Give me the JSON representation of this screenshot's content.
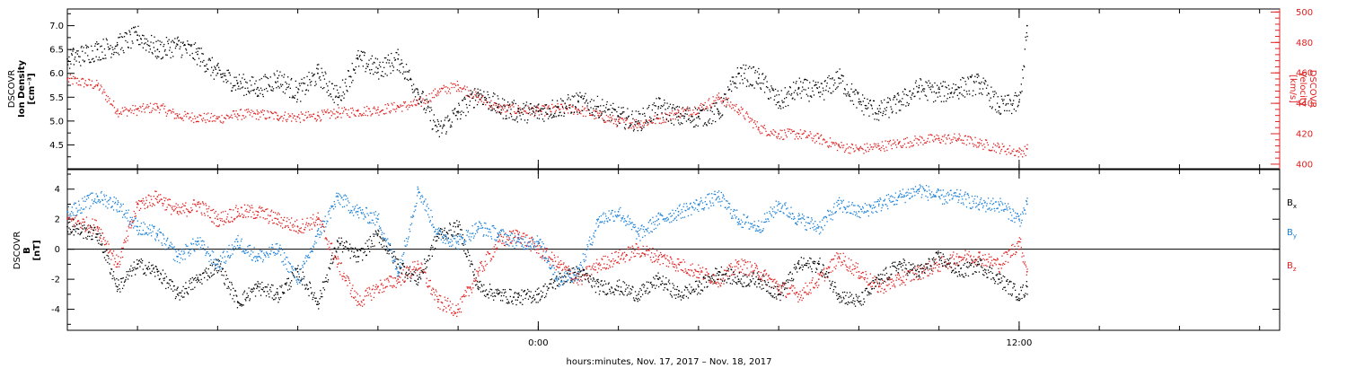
{
  "figure": {
    "xlabel": "hours:minutes, Nov. 17, 2017 – Nov. 18, 2017"
  },
  "colors": {
    "density": "#000000",
    "velocity": "#e02020",
    "bx": "#000000",
    "by": "#1a80d8",
    "bz": "#e02020",
    "frame": "#000000"
  },
  "chart_data": [
    {
      "type": "scatter",
      "panel": "plasma",
      "x_unit": "hours relative to 00:00 Nov. 18, 2017",
      "xlim": [
        -11.75,
        18.5
      ],
      "xticks": [
        {
          "value": 0,
          "label": "0:00"
        },
        {
          "value": 12,
          "label": "12:00"
        }
      ],
      "ylabel_left": [
        "DSCOVR",
        "Ion Density",
        "[cm⁻³]"
      ],
      "ylim_left": [
        4.0,
        7.35
      ],
      "yticks_left": [
        4.5,
        5.0,
        5.5,
        6.0,
        6.5,
        7.0
      ],
      "ylabel_right": [
        "DSCOVR",
        "Velocity",
        "[km/s]"
      ],
      "ylim_right": [
        397,
        502
      ],
      "yticks_right": [
        400,
        420,
        440,
        460,
        480,
        500
      ],
      "series": [
        {
          "name": "Ion Density",
          "axis": "left",
          "color": "#000000",
          "x": [
            -11.75,
            -11.0,
            -10.5,
            -10.0,
            -9.5,
            -9.0,
            -8.5,
            -8.0,
            -7.5,
            -7.0,
            -6.5,
            -6.0,
            -5.5,
            -5.0,
            -4.5,
            -4.0,
            -3.5,
            -3.0,
            -2.5,
            -2.0,
            -1.5,
            -1.0,
            -0.5,
            0.0,
            0.5,
            1.0,
            1.5,
            2.0,
            2.5,
            3.0,
            3.5,
            4.0,
            4.5,
            5.0,
            5.5,
            6.0,
            6.5,
            7.0,
            7.5,
            8.0,
            8.5,
            9.0,
            9.5,
            10.0,
            10.5,
            11.0,
            11.5,
            12.0,
            12.2
          ],
          "y": [
            6.3,
            6.5,
            6.6,
            6.8,
            6.5,
            6.6,
            6.4,
            6.0,
            5.8,
            5.7,
            5.9,
            5.6,
            6.0,
            5.5,
            6.3,
            6.1,
            6.3,
            5.6,
            4.8,
            5.2,
            5.6,
            5.3,
            5.2,
            5.2,
            5.3,
            5.4,
            5.3,
            5.1,
            5.0,
            5.3,
            5.1,
            5.1,
            5.2,
            6.0,
            5.9,
            5.4,
            5.7,
            5.6,
            5.9,
            5.4,
            5.2,
            5.4,
            5.7,
            5.6,
            5.7,
            5.8,
            5.3,
            5.4,
            7.0
          ]
        },
        {
          "name": "Velocity",
          "axis": "right",
          "color": "#e02020",
          "x": [
            -11.75,
            -11.0,
            -10.5,
            -10.0,
            -9.5,
            -9.0,
            -8.5,
            -8.0,
            -7.5,
            -7.0,
            -6.5,
            -6.0,
            -5.5,
            -5.0,
            -4.5,
            -4.0,
            -3.5,
            -3.0,
            -2.5,
            -2.0,
            -1.5,
            -1.0,
            -0.5,
            0.0,
            0.5,
            1.0,
            1.5,
            2.0,
            2.5,
            3.0,
            3.5,
            4.0,
            4.5,
            5.0,
            5.5,
            6.0,
            6.5,
            7.0,
            7.5,
            8.0,
            8.5,
            9.0,
            9.5,
            10.0,
            10.5,
            11.0,
            11.5,
            12.0,
            12.2
          ],
          "y": [
            456,
            452,
            435,
            436,
            438,
            432,
            431,
            430,
            433,
            433,
            432,
            431,
            432,
            434,
            435,
            436,
            438,
            440,
            448,
            452,
            444,
            437,
            436,
            435,
            437,
            436,
            432,
            428,
            427,
            430,
            434,
            437,
            444,
            436,
            424,
            420,
            420,
            417,
            412,
            410,
            412,
            414,
            416,
            417,
            417,
            414,
            411,
            408,
            410
          ]
        }
      ]
    },
    {
      "type": "scatter",
      "panel": "magnetic-field",
      "x_unit": "hours relative to 00:00 Nov. 18, 2017",
      "xlim": [
        -11.75,
        18.5
      ],
      "xticks": [
        {
          "value": 0,
          "label": "0:00"
        },
        {
          "value": 12,
          "label": "12:00"
        }
      ],
      "ylabel_left": [
        "DSCOVR",
        "B",
        "[nT]"
      ],
      "ylim": [
        -5.4,
        5.3
      ],
      "yticks": [
        -4,
        -2,
        0,
        2,
        4
      ],
      "zero_line": true,
      "legend": [
        {
          "label": "B",
          "sub": "x",
          "color": "#000000"
        },
        {
          "label": "B",
          "sub": "y",
          "color": "#1a80d8"
        },
        {
          "label": "B",
          "sub": "z",
          "color": "#e02020"
        }
      ],
      "series": [
        {
          "name": "Bx",
          "color": "#000000",
          "x": [
            -11.75,
            -11.0,
            -10.5,
            -10.0,
            -9.5,
            -9.0,
            -8.5,
            -8.0,
            -7.5,
            -7.0,
            -6.5,
            -6.0,
            -5.5,
            -5.0,
            -4.5,
            -4.0,
            -3.5,
            -3.0,
            -2.5,
            -2.0,
            -1.5,
            -1.0,
            -0.5,
            0.0,
            0.5,
            1.0,
            1.5,
            2.0,
            2.5,
            3.0,
            3.5,
            4.0,
            4.5,
            5.0,
            5.5,
            6.0,
            6.5,
            7.0,
            7.5,
            8.0,
            8.5,
            9.0,
            9.5,
            10.0,
            10.5,
            11.0,
            11.5,
            12.0,
            12.2
          ],
          "y": [
            1.5,
            1.0,
            -2.5,
            -1.0,
            -1.5,
            -3.0,
            -2.0,
            -1.0,
            -3.5,
            -2.5,
            -3.0,
            -1.5,
            -3.5,
            0.5,
            -0.5,
            1.0,
            -1.0,
            -2.0,
            1.0,
            1.5,
            -2.5,
            -3.0,
            -3.2,
            -3.0,
            -2.0,
            -1.5,
            -2.5,
            -2.5,
            -3.0,
            -2.0,
            -3.0,
            -2.5,
            -1.5,
            -2.0,
            -2.0,
            -3.0,
            -1.0,
            -1.0,
            -3.0,
            -3.5,
            -2.0,
            -1.0,
            -1.5,
            -0.5,
            -1.5,
            -1.0,
            -2.0,
            -3.0,
            -2.5
          ]
        },
        {
          "name": "By",
          "color": "#1a80d8",
          "x": [
            -11.75,
            -11.0,
            -10.5,
            -10.0,
            -9.5,
            -9.0,
            -8.5,
            -8.0,
            -7.5,
            -7.0,
            -6.5,
            -6.0,
            -5.5,
            -5.0,
            -4.5,
            -4.0,
            -3.5,
            -3.0,
            -2.5,
            -2.0,
            -1.5,
            -1.0,
            -0.5,
            0.0,
            0.5,
            1.0,
            1.5,
            2.0,
            2.5,
            3.0,
            3.5,
            4.0,
            4.5,
            5.0,
            5.5,
            6.0,
            6.5,
            7.0,
            7.5,
            8.0,
            8.5,
            9.0,
            9.5,
            10.0,
            10.5,
            11.0,
            11.5,
            12.0,
            12.2
          ],
          "y": [
            2.5,
            3.5,
            3.0,
            1.5,
            1.0,
            -0.5,
            0.5,
            -1.0,
            0.5,
            -0.5,
            0.0,
            -2.0,
            1.0,
            3.5,
            2.5,
            2.0,
            -1.5,
            4.0,
            1.0,
            0.5,
            1.5,
            1.0,
            0.5,
            0.5,
            -2.0,
            -1.5,
            2.0,
            2.5,
            1.0,
            2.0,
            2.5,
            3.0,
            3.5,
            2.0,
            1.5,
            3.0,
            2.0,
            1.5,
            3.0,
            2.5,
            3.0,
            3.5,
            4.0,
            3.5,
            3.5,
            3.0,
            3.0,
            2.0,
            3.0
          ]
        },
        {
          "name": "Bz",
          "color": "#e02020",
          "x": [
            -11.75,
            -11.0,
            -10.5,
            -10.0,
            -9.5,
            -9.0,
            -8.5,
            -8.0,
            -7.5,
            -7.0,
            -6.5,
            -6.0,
            -5.5,
            -5.0,
            -4.5,
            -4.0,
            -3.5,
            -3.0,
            -2.5,
            -2.0,
            -1.5,
            -1.0,
            -0.5,
            0.0,
            0.5,
            1.0,
            1.5,
            2.0,
            2.5,
            3.0,
            3.5,
            4.0,
            4.5,
            5.0,
            5.5,
            6.0,
            6.5,
            7.0,
            7.5,
            8.0,
            8.5,
            9.0,
            9.5,
            10.0,
            10.5,
            11.0,
            11.5,
            12.0,
            12.2
          ],
          "y": [
            2.0,
            1.5,
            -1.0,
            3.0,
            3.5,
            2.5,
            3.0,
            2.0,
            2.5,
            2.5,
            2.0,
            1.5,
            2.0,
            -1.0,
            -3.5,
            -2.5,
            -2.0,
            -1.0,
            -3.5,
            -4.0,
            -1.5,
            0.5,
            1.0,
            0.0,
            -1.0,
            -2.0,
            -1.0,
            -0.5,
            0.0,
            -0.5,
            -1.0,
            -1.5,
            -2.0,
            -1.0,
            -1.5,
            -2.5,
            -3.0,
            -2.0,
            -0.5,
            -1.5,
            -2.5,
            -2.0,
            -1.5,
            -1.0,
            -0.5,
            -0.5,
            -1.0,
            0.5,
            -1.5
          ]
        }
      ]
    }
  ]
}
